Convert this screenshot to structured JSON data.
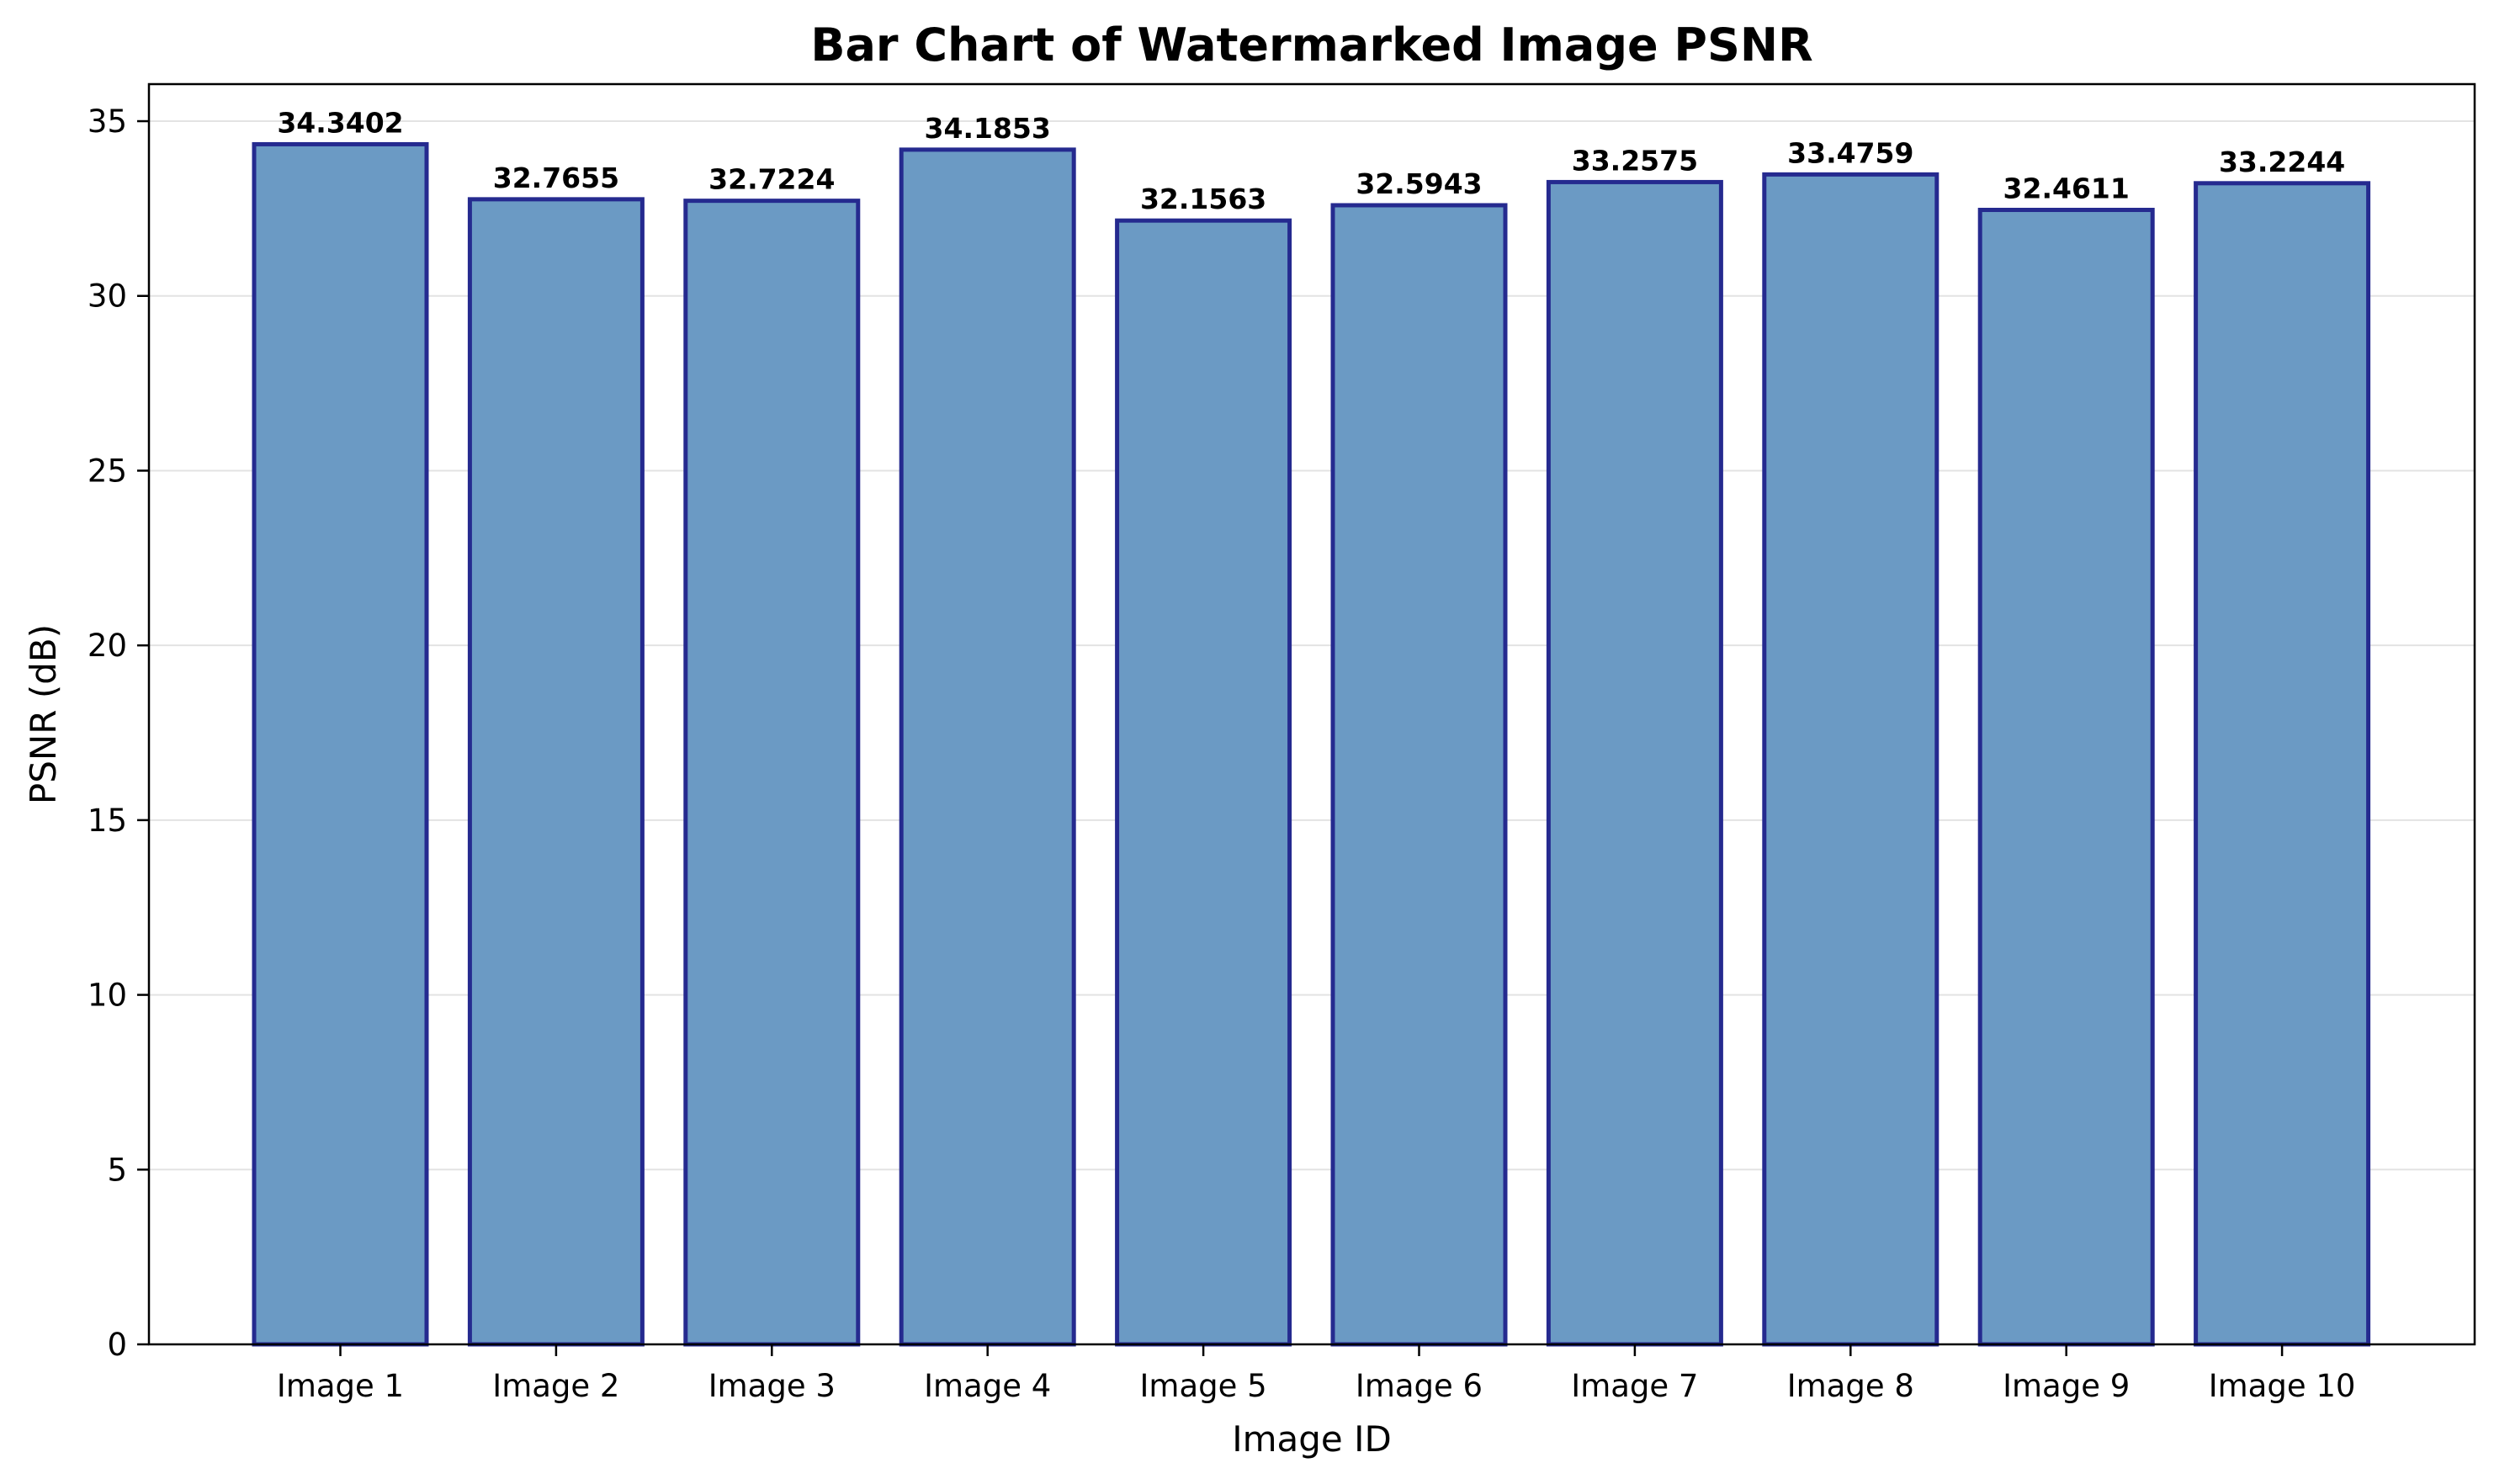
{
  "chart_data": {
    "type": "bar",
    "title": "Bar Chart of Watermarked Image PSNR",
    "xlabel": "Image ID",
    "ylabel": "PSNR (dB)",
    "categories": [
      "Image 1",
      "Image 2",
      "Image 3",
      "Image 4",
      "Image 5",
      "Image 6",
      "Image 7",
      "Image 8",
      "Image 9",
      "Image 10"
    ],
    "values": [
      34.3402,
      32.7655,
      32.7224,
      34.1853,
      32.1563,
      32.5943,
      33.2575,
      33.4759,
      32.4611,
      33.2244
    ],
    "value_labels": [
      "34.3402",
      "32.7655",
      "32.7224",
      "34.1853",
      "32.1563",
      "32.5943",
      "33.2575",
      "33.4759",
      "32.4611",
      "33.2244"
    ],
    "ylim": [
      0,
      36.06
    ],
    "yticks": [
      0,
      5,
      10,
      15,
      20,
      25,
      30,
      35
    ],
    "grid": "horizontal",
    "colors": {
      "bar_fill": "#6b9ac4",
      "bar_edge": "#252a8f"
    }
  }
}
